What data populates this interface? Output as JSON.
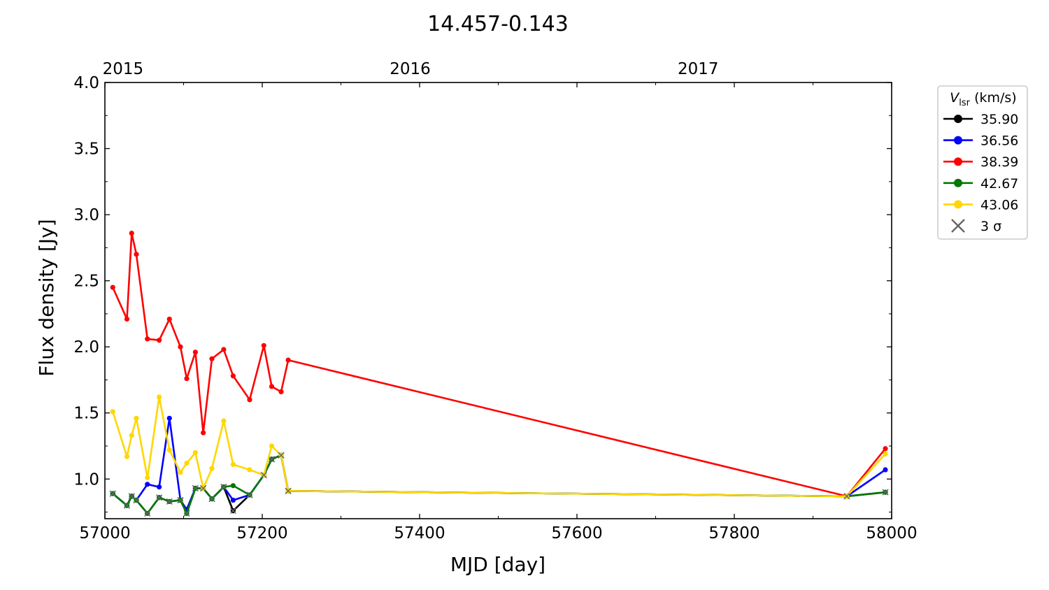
{
  "chart_data": {
    "type": "line",
    "title": "14.457-0.143",
    "xlabel": "MJD [day]",
    "ylabel": "Flux density [Jy]",
    "xlim": [
      57000,
      58000
    ],
    "ylim": [
      0.7,
      4.0
    ],
    "x_ticks": [
      57000,
      57200,
      57400,
      57600,
      57800,
      58000
    ],
    "y_ticks": [
      1.0,
      1.5,
      2.0,
      2.5,
      3.0,
      3.5,
      4.0
    ],
    "top_axis": {
      "labels": [
        "2015",
        "2016",
        "2017"
      ],
      "mjd": [
        57023,
        57388,
        57754
      ]
    },
    "legend": {
      "title_symbol": "V",
      "title_subscript": "lsr",
      "title_unit": "(km/s)",
      "placement": "outside-right-top",
      "sigma_label": "3 σ"
    },
    "x": [
      57010,
      57028,
      57034,
      57040,
      57054,
      57069,
      57082,
      57096,
      57104,
      57115,
      57125,
      57136,
      57151,
      57163,
      57184,
      57202,
      57212,
      57224,
      57233,
      57943,
      57992
    ],
    "series": [
      {
        "name": "35.90",
        "color": "#000000",
        "values": [
          0.89,
          0.8,
          0.87,
          0.84,
          0.74,
          0.86,
          0.83,
          0.84,
          0.74,
          0.93,
          0.93,
          0.85,
          0.94,
          0.76,
          0.88,
          1.03,
          1.15,
          1.18,
          0.91,
          0.87,
          0.9
        ],
        "sigma": [
          true,
          true,
          true,
          true,
          true,
          true,
          true,
          true,
          true,
          true,
          true,
          true,
          true,
          true,
          true,
          true,
          true,
          true,
          true,
          true,
          true
        ]
      },
      {
        "name": "36.56",
        "color": "#0000ff",
        "values": [
          0.89,
          0.8,
          0.87,
          0.84,
          0.96,
          0.94,
          1.46,
          0.84,
          0.77,
          0.93,
          0.93,
          0.85,
          0.94,
          0.84,
          0.88,
          1.03,
          1.15,
          1.18,
          0.91,
          0.87,
          1.07
        ],
        "sigma": [
          true,
          true,
          true,
          true,
          false,
          false,
          false,
          true,
          false,
          true,
          true,
          true,
          true,
          false,
          true,
          true,
          true,
          true,
          true,
          true,
          false
        ]
      },
      {
        "name": "38.39",
        "color": "#ff0000",
        "values": [
          2.45,
          2.21,
          2.86,
          2.7,
          2.06,
          2.05,
          2.21,
          2.0,
          1.76,
          1.96,
          1.35,
          1.91,
          1.98,
          1.78,
          1.6,
          2.01,
          1.7,
          1.66,
          1.9,
          0.87,
          1.23
        ],
        "sigma": [
          false,
          false,
          false,
          false,
          false,
          false,
          false,
          false,
          false,
          false,
          false,
          false,
          false,
          false,
          false,
          false,
          false,
          false,
          false,
          true,
          false
        ]
      },
      {
        "name": "42.67",
        "color": "#007800",
        "values": [
          0.89,
          0.8,
          0.87,
          0.84,
          0.74,
          0.86,
          0.83,
          0.84,
          0.74,
          0.93,
          0.93,
          0.85,
          0.94,
          0.95,
          0.88,
          1.03,
          1.15,
          1.18,
          0.91,
          0.87,
          0.9
        ],
        "sigma": [
          true,
          true,
          true,
          true,
          true,
          true,
          true,
          true,
          true,
          true,
          true,
          true,
          true,
          false,
          true,
          true,
          true,
          true,
          true,
          true,
          true
        ]
      },
      {
        "name": "43.06",
        "color": "#ffd700",
        "values": [
          1.51,
          1.17,
          1.33,
          1.46,
          1.01,
          1.62,
          1.22,
          1.05,
          1.12,
          1.2,
          0.93,
          1.08,
          1.44,
          1.11,
          1.07,
          1.03,
          1.25,
          1.18,
          0.91,
          0.87,
          1.19
        ],
        "sigma": [
          false,
          false,
          false,
          false,
          false,
          false,
          false,
          false,
          false,
          false,
          true,
          false,
          false,
          false,
          false,
          true,
          false,
          true,
          true,
          true,
          false
        ]
      }
    ],
    "sigma_marker_color": "#666666",
    "grid": false
  }
}
